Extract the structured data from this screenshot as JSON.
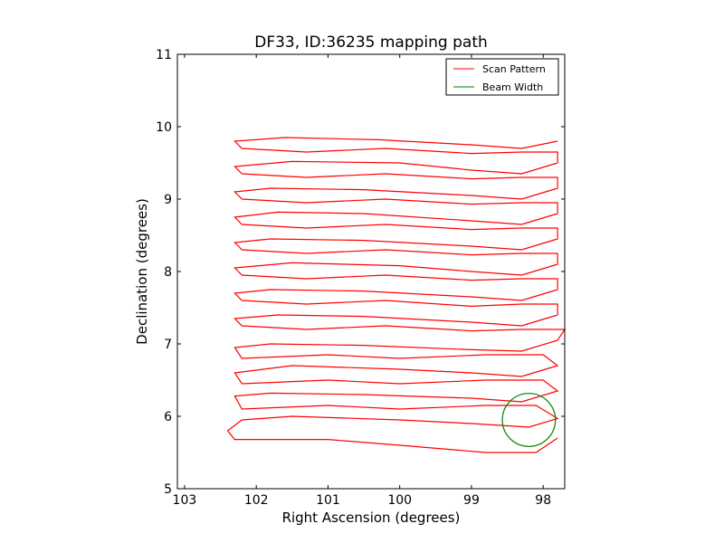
{
  "chart_data": {
    "type": "line",
    "title": "DF33, ID:36235 mapping path",
    "xlabel": "Right Ascension (degrees)",
    "ylabel": "Declination (degrees)",
    "xlim": [
      103.1,
      97.7
    ],
    "ylim": [
      5,
      11
    ],
    "x_ticks": [
      103,
      102,
      101,
      100,
      99,
      98
    ],
    "y_ticks": [
      5,
      6,
      7,
      8,
      9,
      10,
      11
    ],
    "grid": false,
    "legend_position": "top-right",
    "legend": [
      {
        "label": "Scan Pattern",
        "color": "#ff0000"
      },
      {
        "label": "Beam Width",
        "color": "#008000"
      }
    ],
    "series": [
      {
        "name": "Scan Pattern",
        "color": "#ff0000",
        "x": [
          97.8,
          98.1,
          98.8,
          100.0,
          101.0,
          102.3,
          102.4,
          102.2,
          101.5,
          100.0,
          99.0,
          98.2,
          97.8,
          98.1,
          98.8,
          100.0,
          101.0,
          102.2,
          102.3,
          101.8,
          100.5,
          99.0,
          98.3,
          97.8,
          98.0,
          98.8,
          100.0,
          101.0,
          102.2,
          102.3,
          101.5,
          100.0,
          99.0,
          98.3,
          97.8,
          98.0,
          98.8,
          100.0,
          101.0,
          102.2,
          102.3,
          101.8,
          100.5,
          99.0,
          98.3,
          97.8,
          97.7,
          98.3,
          99.0,
          100.2,
          101.3,
          102.2,
          102.3,
          101.7,
          100.5,
          99.0,
          98.3,
          97.8,
          97.8,
          98.3,
          99.0,
          100.2,
          101.3,
          102.2,
          102.3,
          101.8,
          100.5,
          99.0,
          98.3,
          97.8,
          97.8,
          98.3,
          99.0,
          100.2,
          101.3,
          102.2,
          102.3,
          101.5,
          100.0,
          99.0,
          98.3,
          97.8,
          97.8,
          98.3,
          99.0,
          100.2,
          101.3,
          102.2,
          102.3,
          101.8,
          100.5,
          99.0,
          98.3,
          97.8,
          97.8,
          98.3,
          99.0,
          100.2,
          101.3,
          102.2,
          102.3,
          101.7,
          100.5,
          99.0,
          98.3,
          97.8,
          97.8,
          98.3,
          99.0,
          100.2,
          101.3,
          102.2,
          102.3,
          101.8,
          100.5,
          99.0,
          98.3,
          97.8,
          97.8,
          98.3,
          99.0,
          100.2,
          101.3,
          102.2,
          102.3,
          101.5,
          100.0,
          99.0,
          98.3,
          97.8,
          97.8,
          98.3,
          99.0,
          100.2,
          101.3,
          102.2,
          102.3,
          101.6,
          100.3,
          99.0,
          98.3,
          97.8
        ],
        "y": [
          5.7,
          5.5,
          5.5,
          5.6,
          5.68,
          5.68,
          5.8,
          5.95,
          6.0,
          5.95,
          5.9,
          5.85,
          5.97,
          6.15,
          6.15,
          6.1,
          6.15,
          6.1,
          6.28,
          6.32,
          6.3,
          6.25,
          6.2,
          6.35,
          6.5,
          6.5,
          6.45,
          6.5,
          6.45,
          6.6,
          6.7,
          6.65,
          6.6,
          6.55,
          6.7,
          6.85,
          6.85,
          6.8,
          6.85,
          6.8,
          6.95,
          7.0,
          6.98,
          6.92,
          6.9,
          7.05,
          7.2,
          7.2,
          7.18,
          7.25,
          7.2,
          7.25,
          7.35,
          7.4,
          7.38,
          7.3,
          7.25,
          7.4,
          7.55,
          7.55,
          7.52,
          7.6,
          7.55,
          7.6,
          7.7,
          7.75,
          7.73,
          7.65,
          7.6,
          7.75,
          7.9,
          7.9,
          7.88,
          7.95,
          7.9,
          7.95,
          8.05,
          8.12,
          8.08,
          8.0,
          7.95,
          8.1,
          8.25,
          8.25,
          8.23,
          8.3,
          8.25,
          8.3,
          8.4,
          8.45,
          8.43,
          8.35,
          8.3,
          8.45,
          8.6,
          8.6,
          8.58,
          8.65,
          8.6,
          8.65,
          8.75,
          8.82,
          8.8,
          8.7,
          8.65,
          8.8,
          8.95,
          8.95,
          8.93,
          9.0,
          8.95,
          9.0,
          9.1,
          9.15,
          9.13,
          9.05,
          9.0,
          9.15,
          9.3,
          9.3,
          9.28,
          9.35,
          9.3,
          9.35,
          9.45,
          9.52,
          9.5,
          9.4,
          9.35,
          9.5,
          9.65,
          9.65,
          9.63,
          9.7,
          9.65,
          9.7,
          9.8,
          9.85,
          9.82,
          9.75,
          9.7,
          9.8
        ]
      }
    ],
    "beam": {
      "name": "Beam Width",
      "color": "#008000",
      "center": [
        98.2,
        5.95
      ],
      "radius_deg": 0.37
    }
  }
}
